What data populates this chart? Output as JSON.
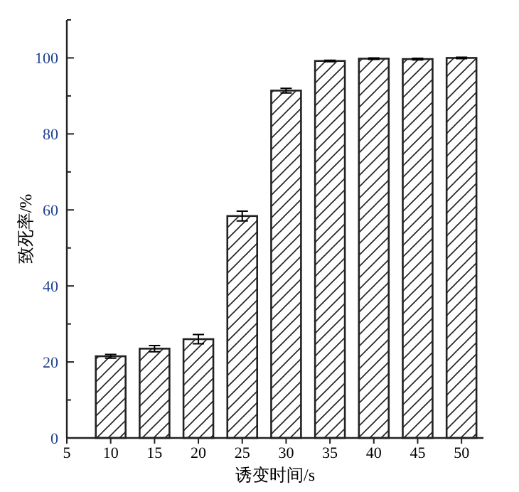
{
  "chart_data": {
    "type": "bar",
    "xlabel": "诱变时间/s",
    "ylabel": "致死率/%",
    "x": [
      10,
      15,
      20,
      25,
      30,
      35,
      40,
      45,
      50
    ],
    "values": [
      21.5,
      23.5,
      26,
      58.4,
      91.4,
      99.2,
      99.8,
      99.7,
      100
    ],
    "errors": [
      0.5,
      0.8,
      1.2,
      1.3,
      0.6,
      0.2,
      0.2,
      0.2,
      0.2
    ],
    "color": "#222222",
    "xlim": [
      5,
      52.5
    ],
    "xticks": [
      5,
      10,
      15,
      20,
      25,
      30,
      35,
      40,
      45,
      50
    ],
    "ylim": [
      0,
      110
    ],
    "yticks": [
      0,
      {
        "value": 10,
        "label": null
      },
      20,
      {
        "value": 30,
        "label": null
      },
      40,
      {
        "value": 50,
        "label": null
      },
      60,
      {
        "value": 70,
        "label": null
      },
      80,
      {
        "value": 90,
        "label": null
      },
      100,
      {
        "value": 110,
        "label": null
      }
    ],
    "grid": false
  }
}
